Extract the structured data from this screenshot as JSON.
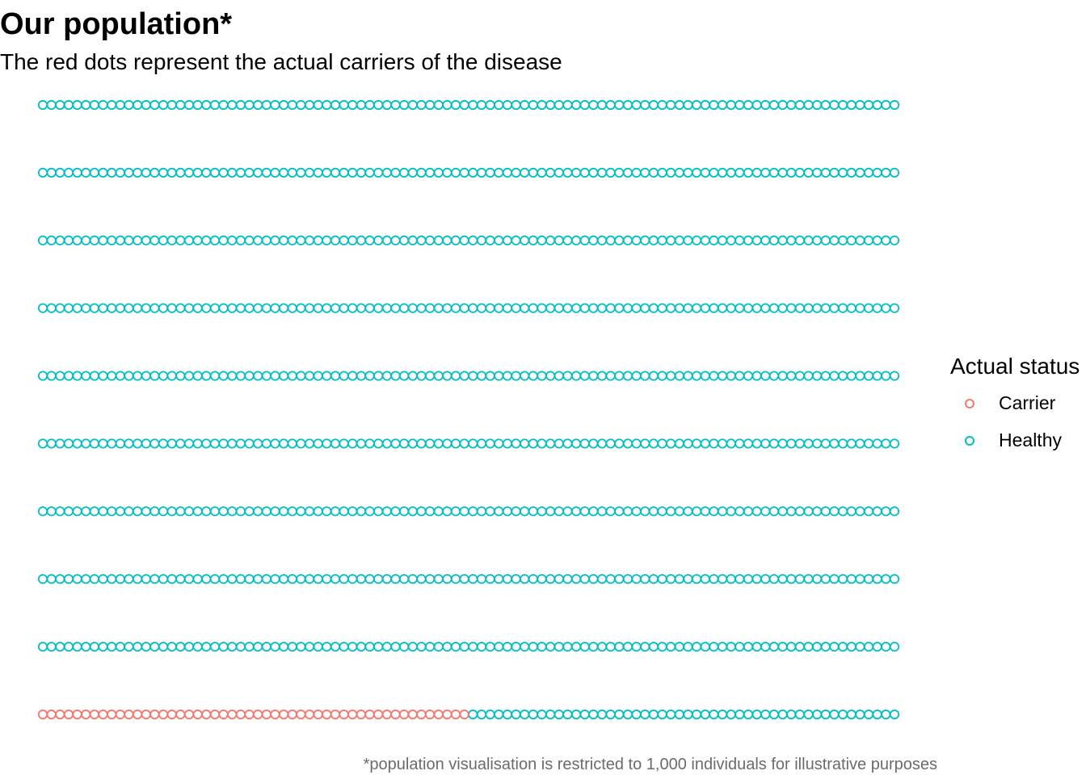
{
  "chart_data": {
    "type": "scatter",
    "title": "Our population*",
    "subtitle": "The red dots represent the actual carriers of the disease",
    "caption": "*population visualisation is restricted to 1,000 individuals for illustrative purposes",
    "grid": false,
    "x": [
      1,
      100
    ],
    "y": [
      1,
      10
    ],
    "columns_per_row": 100,
    "rows": 10,
    "total_individuals": 1000,
    "series": [
      {
        "name": "Carrier",
        "count": 50,
        "color": "#F8766D"
      },
      {
        "name": "Healthy",
        "count": 950,
        "color": "#00BFC4"
      }
    ],
    "legend": {
      "title": "Actual status",
      "position": "right",
      "items": [
        {
          "label": "Carrier",
          "color": "#F8766D"
        },
        {
          "label": "Healthy",
          "color": "#00BFC4"
        }
      ]
    }
  }
}
